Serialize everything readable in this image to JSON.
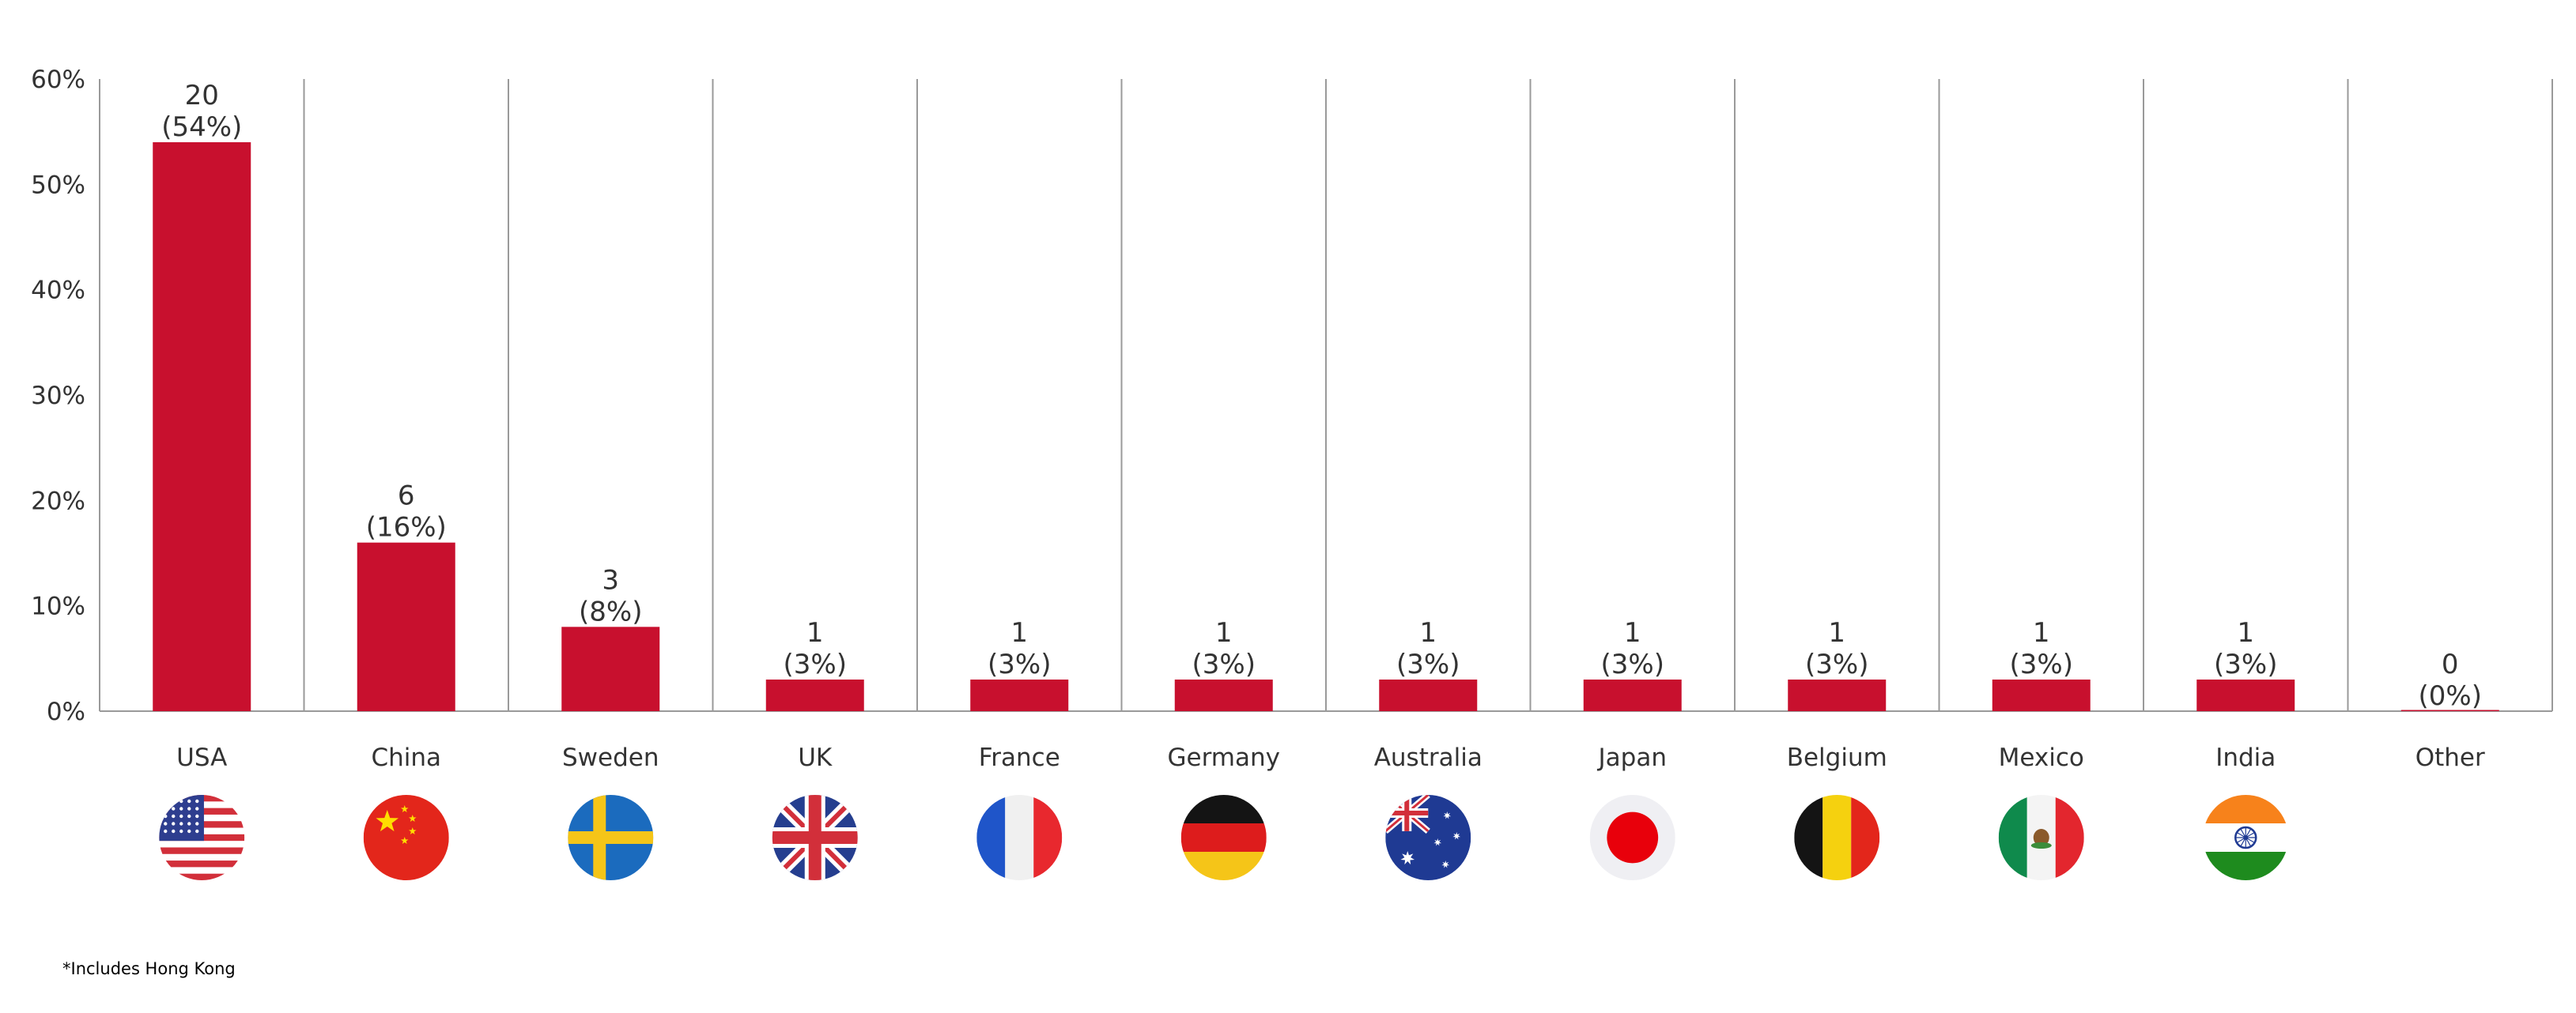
{
  "chart_data": {
    "type": "bar",
    "categories": [
      "USA",
      "China",
      "Sweden",
      "UK",
      "France",
      "Germany",
      "Australia",
      "Japan",
      "Belgium",
      "Mexico",
      "India",
      "Other"
    ],
    "values": [
      54,
      16,
      8,
      3,
      3,
      3,
      3,
      3,
      3,
      3,
      3,
      0
    ],
    "data_labels": [
      {
        "count": "20",
        "percent": "(54%)"
      },
      {
        "count": "6",
        "percent": "(16%)"
      },
      {
        "count": "3",
        "percent": "(8%)"
      },
      {
        "count": "1",
        "percent": "(3%)"
      },
      {
        "count": "1",
        "percent": "(3%)"
      },
      {
        "count": "1",
        "percent": "(3%)"
      },
      {
        "count": "1",
        "percent": "(3%)"
      },
      {
        "count": "1",
        "percent": "(3%)"
      },
      {
        "count": "1",
        "percent": "(3%)"
      },
      {
        "count": "1",
        "percent": "(3%)"
      },
      {
        "count": "1",
        "percent": "(3%)"
      },
      {
        "count": "0",
        "percent": "(0%)"
      }
    ],
    "y_ticks": [
      "0%",
      "10%",
      "20%",
      "30%",
      "40%",
      "50%",
      "60%"
    ],
    "ylim": [
      0,
      60
    ],
    "title": "",
    "xlabel": "",
    "ylabel": "",
    "grid": "vertical separators between categories",
    "legend": "none",
    "bar_color": "#C8102E",
    "flag_icons": [
      "usa-flag-icon",
      "china-flag-icon",
      "sweden-flag-icon",
      "uk-flag-icon",
      "france-flag-icon",
      "germany-flag-icon",
      "australia-flag-icon",
      "japan-flag-icon",
      "belgium-flag-icon",
      "mexico-flag-icon",
      "india-flag-icon",
      ""
    ]
  },
  "footnote": "*Includes Hong Kong"
}
